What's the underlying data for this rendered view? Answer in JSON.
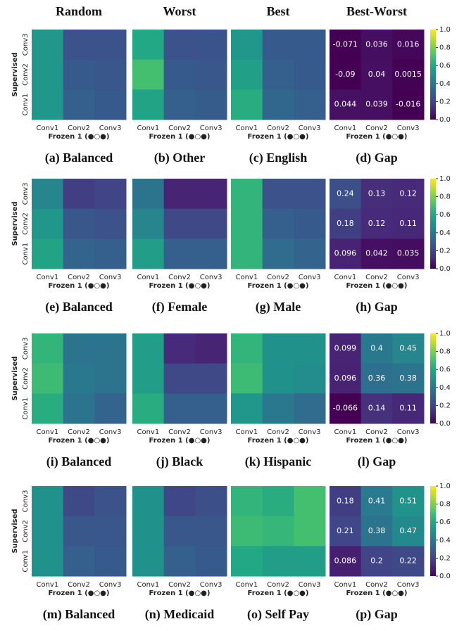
{
  "column_headers": [
    "Random",
    "Worst",
    "Best",
    "Best-Worst"
  ],
  "chart_data": [
    {
      "type": "heatmap",
      "caption": "(a) Balanced",
      "x_categories": [
        "Conv1",
        "Conv2",
        "Conv3"
      ],
      "y_categories": [
        "Conv3",
        "Conv2",
        "Conv1"
      ],
      "xlabel": "Frozen 1 (●○●)",
      "ylabel": "Supervised",
      "cmap": "viridis",
      "clim": [
        0,
        1
      ],
      "values": [
        [
          0.52,
          0.25,
          0.25
        ],
        [
          0.52,
          0.28,
          0.27
        ],
        [
          0.52,
          0.3,
          0.28
        ]
      ]
    },
    {
      "type": "heatmap",
      "caption": "(b) Other",
      "x_categories": [
        "Conv1",
        "Conv2",
        "Conv3"
      ],
      "xlabel": "Frozen 1 (●○●)",
      "cmap": "viridis",
      "clim": [
        0,
        1
      ],
      "values": [
        [
          0.6,
          0.25,
          0.26
        ],
        [
          0.7,
          0.28,
          0.27
        ],
        [
          0.58,
          0.3,
          0.29
        ]
      ]
    },
    {
      "type": "heatmap",
      "caption": "(c) English",
      "x_categories": [
        "Conv1",
        "Conv2",
        "Conv3"
      ],
      "xlabel": "Frozen 1 (●○●)",
      "cmap": "viridis",
      "clim": [
        0,
        1
      ],
      "values": [
        [
          0.52,
          0.28,
          0.28
        ],
        [
          0.56,
          0.3,
          0.28
        ],
        [
          0.62,
          0.33,
          0.3
        ]
      ]
    },
    {
      "type": "heatmap",
      "caption": "(d) Gap",
      "x_categories": [
        "Conv1",
        "Conv2",
        "Conv3"
      ],
      "xlabel": "Frozen 1 (●○●)",
      "cmap": "viridis",
      "clim": [
        0,
        1
      ],
      "annotate": true,
      "colorbar": true,
      "cticks": [
        {
          "value": 0,
          "label": "0.0"
        },
        0.2,
        0.4,
        0.6,
        0.8,
        {
          "value": 1,
          "label": "1.0"
        }
      ],
      "values": [
        [
          -0.071,
          0.036,
          0.016
        ],
        [
          -0.09,
          0.04,
          0.0015
        ],
        [
          0.044,
          0.039,
          -0.016
        ]
      ]
    },
    {
      "type": "heatmap",
      "caption": "(e) Balanced",
      "x_categories": [
        "Conv1",
        "Conv2",
        "Conv3"
      ],
      "y_categories": [
        "Conv3",
        "Conv2",
        "Conv1"
      ],
      "xlabel": "Frozen 1 (●○●)",
      "ylabel": "Supervised",
      "cmap": "viridis",
      "clim": [
        0,
        1
      ],
      "values": [
        [
          0.45,
          0.18,
          0.2
        ],
        [
          0.52,
          0.27,
          0.25
        ],
        [
          0.58,
          0.32,
          0.3
        ]
      ]
    },
    {
      "type": "heatmap",
      "caption": "(f) Female",
      "x_categories": [
        "Conv1",
        "Conv2",
        "Conv3"
      ],
      "xlabel": "Frozen 1 (●○●)",
      "cmap": "viridis",
      "clim": [
        0,
        1
      ],
      "values": [
        [
          0.38,
          0.1,
          0.1
        ],
        [
          0.45,
          0.22,
          0.22
        ],
        [
          0.55,
          0.3,
          0.3
        ]
      ]
    },
    {
      "type": "heatmap",
      "caption": "(g) Male",
      "x_categories": [
        "Conv1",
        "Conv2",
        "Conv3"
      ],
      "xlabel": "Frozen 1 (●○●)",
      "cmap": "viridis",
      "clim": [
        0,
        1
      ],
      "values": [
        [
          0.65,
          0.25,
          0.25
        ],
        [
          0.65,
          0.3,
          0.28
        ],
        [
          0.65,
          0.35,
          0.32
        ]
      ]
    },
    {
      "type": "heatmap",
      "caption": "(h) Gap",
      "x_categories": [
        "Conv1",
        "Conv2",
        "Conv3"
      ],
      "xlabel": "Frozen 1 (●○●)",
      "cmap": "viridis",
      "clim": [
        0,
        1
      ],
      "annotate": true,
      "colorbar": true,
      "cticks": [
        {
          "value": 0,
          "label": "0.0"
        },
        0.2,
        0.4,
        0.6,
        0.8,
        {
          "value": 1,
          "label": "1.0"
        }
      ],
      "values": [
        [
          0.24,
          0.13,
          0.12
        ],
        [
          0.18,
          0.12,
          0.11
        ],
        [
          0.096,
          0.042,
          0.035
        ]
      ]
    },
    {
      "type": "heatmap",
      "caption": "(i) Balanced",
      "x_categories": [
        "Conv1",
        "Conv2",
        "Conv3"
      ],
      "y_categories": [
        "Conv3",
        "Conv2",
        "Conv1"
      ],
      "xlabel": "Frozen 1 (●○●)",
      "ylabel": "Supervised",
      "cmap": "viridis",
      "clim": [
        0,
        1
      ],
      "values": [
        [
          0.65,
          0.38,
          0.38
        ],
        [
          0.68,
          0.4,
          0.38
        ],
        [
          0.62,
          0.38,
          0.32
        ]
      ]
    },
    {
      "type": "heatmap",
      "caption": "(j) Black",
      "x_categories": [
        "Conv1",
        "Conv2",
        "Conv3"
      ],
      "xlabel": "Frozen 1 (●○●)",
      "cmap": "viridis",
      "clim": [
        0,
        1
      ],
      "values": [
        [
          0.55,
          0.12,
          0.1
        ],
        [
          0.55,
          0.22,
          0.22
        ],
        [
          0.62,
          0.3,
          0.3
        ]
      ]
    },
    {
      "type": "heatmap",
      "caption": "(k) Hispanic",
      "x_categories": [
        "Conv1",
        "Conv2",
        "Conv3"
      ],
      "xlabel": "Frozen 1 (●○●)",
      "cmap": "viridis",
      "clim": [
        0,
        1
      ],
      "values": [
        [
          0.65,
          0.5,
          0.5
        ],
        [
          0.68,
          0.5,
          0.48
        ],
        [
          0.52,
          0.4,
          0.35
        ]
      ]
    },
    {
      "type": "heatmap",
      "caption": "(l) Gap",
      "x_categories": [
        "Conv1",
        "Conv2",
        "Conv3"
      ],
      "xlabel": "Frozen 1 (●○●)",
      "cmap": "viridis",
      "clim": [
        0,
        1
      ],
      "annotate": true,
      "colorbar": true,
      "cticks": [
        {
          "value": 0,
          "label": "0.0"
        },
        0.2,
        0.4,
        0.6,
        0.8,
        {
          "value": 1,
          "label": "1.0"
        }
      ],
      "values": [
        [
          0.099,
          0.4,
          0.45
        ],
        [
          0.096,
          0.36,
          0.38
        ],
        [
          -0.066,
          0.14,
          0.11
        ]
      ]
    },
    {
      "type": "heatmap",
      "caption": "(m) Balanced",
      "x_categories": [
        "Conv1",
        "Conv2",
        "Conv3"
      ],
      "y_categories": [
        "Conv3",
        "Conv2",
        "Conv1"
      ],
      "xlabel": "Frozen 1 (●○●)",
      "ylabel": "Supervised",
      "cmap": "viridis",
      "clim": [
        0,
        1
      ],
      "values": [
        [
          0.5,
          0.22,
          0.25
        ],
        [
          0.5,
          0.27,
          0.27
        ],
        [
          0.5,
          0.3,
          0.28
        ]
      ]
    },
    {
      "type": "heatmap",
      "caption": "(n) Medicaid",
      "x_categories": [
        "Conv1",
        "Conv2",
        "Conv3"
      ],
      "xlabel": "Frozen 1 (●○●)",
      "cmap": "viridis",
      "clim": [
        0,
        1
      ],
      "values": [
        [
          0.5,
          0.21,
          0.24
        ],
        [
          0.5,
          0.27,
          0.27
        ],
        [
          0.5,
          0.3,
          0.28
        ]
      ]
    },
    {
      "type": "heatmap",
      "caption": "(o) Self Pay",
      "x_categories": [
        "Conv1",
        "Conv2",
        "Conv3"
      ],
      "xlabel": "Frozen 1 (●○●)",
      "cmap": "viridis",
      "clim": [
        0,
        1
      ],
      "values": [
        [
          0.65,
          0.62,
          0.7
        ],
        [
          0.68,
          0.66,
          0.7
        ],
        [
          0.6,
          0.55,
          0.55
        ]
      ]
    },
    {
      "type": "heatmap",
      "caption": "(p) Gap",
      "x_categories": [
        "Conv1",
        "Conv2",
        "Conv3"
      ],
      "xlabel": "Frozen 1 (●○●)",
      "cmap": "viridis",
      "clim": [
        0,
        1
      ],
      "annotate": true,
      "colorbar": true,
      "cticks": [
        {
          "value": 0,
          "label": "0.0"
        },
        0.2,
        0.4,
        0.6,
        0.8,
        {
          "value": 1,
          "label": "1.0"
        }
      ],
      "values": [
        [
          0.18,
          0.41,
          0.51
        ],
        [
          0.21,
          0.38,
          0.47
        ],
        [
          0.086,
          0.2,
          0.22
        ]
      ]
    }
  ]
}
